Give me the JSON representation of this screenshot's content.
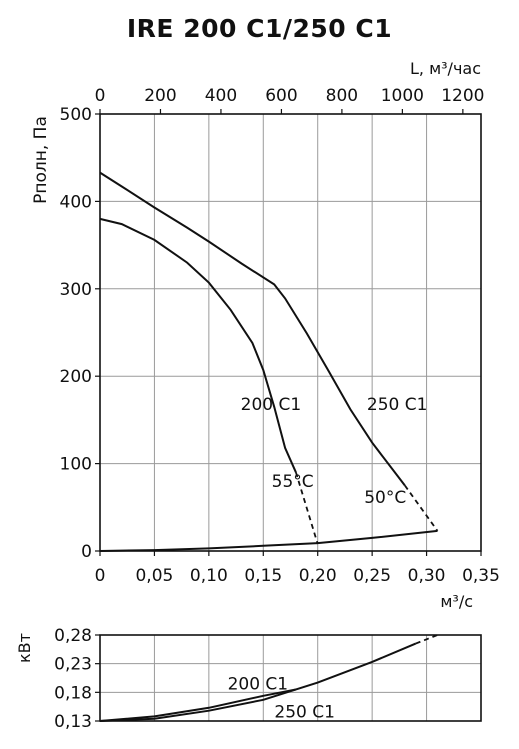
{
  "title": "IRE 200 C1/250 C1",
  "chart_data": [
    {
      "type": "line",
      "name": "pressure",
      "ylabel": "Рполн, Па",
      "xlabel_top": "L, м³/час",
      "xlabel_bottom": "м³/с",
      "xlim": [
        0,
        0.35
      ],
      "ylim": [
        0,
        500
      ],
      "xlim_top": [
        0,
        1260
      ],
      "x_ticks": [
        "0",
        "0,05",
        "0,10",
        "0,15",
        "0,20",
        "0,25",
        "0,30",
        "0,35"
      ],
      "x_tick_values": [
        0,
        0.05,
        0.1,
        0.15,
        0.2,
        0.25,
        0.3,
        0.35
      ],
      "x_top_ticks": [
        "0",
        "200",
        "400",
        "600",
        "800",
        "1000",
        "1200"
      ],
      "x_top_tick_values": [
        0,
        200,
        400,
        600,
        800,
        1000,
        1200
      ],
      "y_ticks": [
        "0",
        "100",
        "200",
        "300",
        "400",
        "500"
      ],
      "y_tick_values": [
        0,
        100,
        200,
        300,
        400,
        500
      ],
      "grid": true,
      "series": [
        {
          "name": "200 C1",
          "x": [
            0,
            0.02,
            0.05,
            0.08,
            0.1,
            0.12,
            0.14,
            0.15,
            0.16,
            0.17,
            0.18
          ],
          "y": [
            380,
            374,
            356,
            330,
            307,
            276,
            238,
            207,
            165,
            118,
            90
          ],
          "dashed_x": [
            0.18,
            0.2
          ],
          "dashed_y": [
            90,
            8
          ]
        },
        {
          "name": "250 C1",
          "x": [
            0,
            0.02,
            0.05,
            0.08,
            0.1,
            0.13,
            0.16,
            0.17,
            0.19,
            0.21,
            0.23,
            0.25,
            0.28
          ],
          "y": [
            433,
            417,
            393,
            370,
            354,
            329,
            305,
            289,
            249,
            206,
            162,
            124,
            75
          ],
          "dashed_x": [
            0.28,
            0.31
          ],
          "dashed_y": [
            75,
            23
          ]
        },
        {
          "name": "system",
          "x": [
            0,
            0.05,
            0.1,
            0.15,
            0.2,
            0.25,
            0.31
          ],
          "y": [
            0,
            1,
            3,
            6,
            9,
            15,
            23
          ]
        }
      ],
      "annotations": [
        {
          "text": "200 C1",
          "x": 0.157,
          "y": 168
        },
        {
          "text": "250 C1",
          "x": 0.273,
          "y": 168
        },
        {
          "text": "55°C",
          "x": 0.177,
          "y": 80
        },
        {
          "text": "50°C",
          "x": 0.262,
          "y": 62
        }
      ]
    },
    {
      "type": "line",
      "name": "power",
      "ylabel": "кВт",
      "xlim": [
        0,
        0.35
      ],
      "ylim": [
        0.13,
        0.28
      ],
      "y_ticks": [
        "0,28",
        "0,23",
        "0,18",
        "0,13"
      ],
      "y_tick_values": [
        0.28,
        0.23,
        0.18,
        0.13
      ],
      "grid": true,
      "series": [
        {
          "name": "200 C1",
          "x": [
            0,
            0.05,
            0.1,
            0.15,
            0.18
          ],
          "y": [
            0.13,
            0.138,
            0.153,
            0.174,
            0.185
          ]
        },
        {
          "name": "250 C1",
          "x": [
            0,
            0.05,
            0.1,
            0.15,
            0.2,
            0.25,
            0.29
          ],
          "y": [
            0.13,
            0.134,
            0.148,
            0.167,
            0.197,
            0.233,
            0.265
          ],
          "dashed_x": [
            0.29,
            0.31
          ],
          "dashed_y": [
            0.265,
            0.28
          ]
        }
      ],
      "annotations": [
        {
          "text": "200 C1",
          "x": 0.145,
          "y": 0.195
        },
        {
          "text": "250 C1",
          "x": 0.188,
          "y": 0.147
        }
      ]
    }
  ]
}
